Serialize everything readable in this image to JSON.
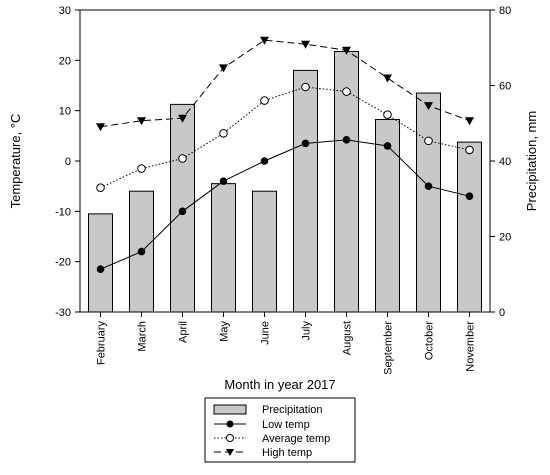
{
  "chart_data": {
    "type": "bar",
    "categories": [
      "February",
      "March",
      "April",
      "May",
      "June",
      "July",
      "August",
      "September",
      "October",
      "November"
    ],
    "xlabel": "Month in year 2017",
    "ylabel": "Temperature, °C",
    "y2label": "Precipitation, mm",
    "ylim": [
      -30,
      30
    ],
    "y2lim": [
      0,
      80
    ],
    "yticks": [
      "30",
      "20",
      "10",
      "0",
      "-10",
      "-20",
      "-30"
    ],
    "y2ticks": [
      "80",
      "60",
      "40",
      "20",
      "0"
    ],
    "grid": false,
    "legend_position": "bottom",
    "series": [
      {
        "name": "Precipitation",
        "axis": "right",
        "kind": "bar",
        "values": [
          26,
          32,
          55,
          34,
          32,
          64,
          69,
          51,
          58,
          45
        ]
      },
      {
        "name": "Low temp",
        "axis": "left",
        "kind": "line",
        "marker": "filled-circle",
        "line_style": "solid",
        "values": [
          -21.5,
          -18,
          -10,
          -4,
          0,
          3.5,
          4.2,
          3,
          -5,
          -7
        ]
      },
      {
        "name": "Average temp",
        "axis": "left",
        "kind": "line",
        "marker": "open-circle",
        "line_style": "dotted",
        "values": [
          -5.3,
          -1.5,
          0.5,
          5.5,
          12,
          14.7,
          13.8,
          9.2,
          4,
          2.2
        ]
      },
      {
        "name": "High temp",
        "axis": "left",
        "kind": "line",
        "marker": "filled-triangle-down",
        "line_style": "dashed",
        "values": [
          6.8,
          8,
          8.5,
          18.5,
          24,
          23.2,
          22,
          16.5,
          11,
          8
        ]
      }
    ],
    "colors": {
      "bar_fill": "#c8c8c8",
      "bar_stroke": "#000000",
      "line": "#000000"
    }
  }
}
